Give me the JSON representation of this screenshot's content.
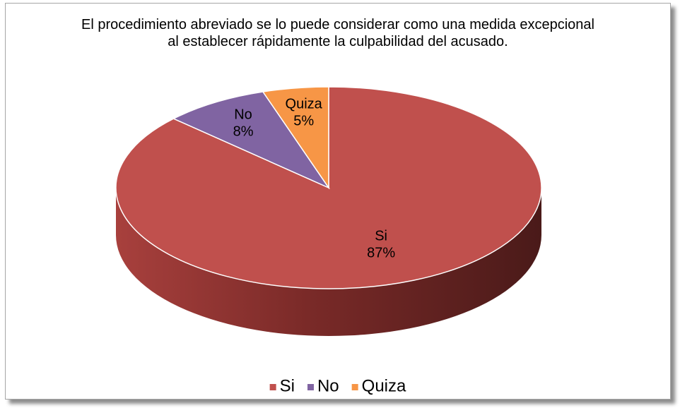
{
  "chart_data": {
    "type": "pie3d",
    "title": "El procedimiento abreviado se lo puede considerar como una medida excepcional al establecer rápidamente la culpabilidad del acusado.",
    "categories": [
      "Si",
      "No",
      "Quiza"
    ],
    "values": [
      87,
      8,
      5
    ],
    "value_labels": [
      "87%",
      "8%",
      "5%"
    ],
    "colors": [
      "#c0504d",
      "#8064a2",
      "#f79646"
    ],
    "legend": "bottom"
  }
}
